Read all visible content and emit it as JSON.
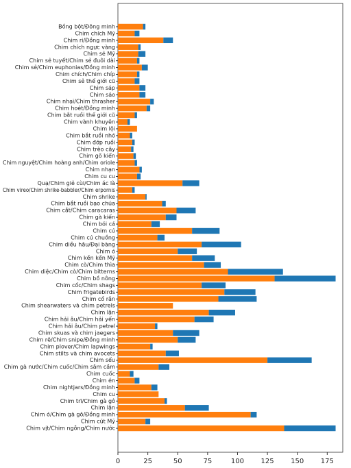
{
  "chart_data": {
    "type": "bar",
    "orientation": "horizontal",
    "categories": [
      "Bồng bột/Đông minh",
      "Chim chích Mỹ",
      "Chim ri/Đồng minh",
      "Chim chích ngực vàng",
      "Chim sẻ Mỹ",
      "Chim sẻ tuyết/Chim sẻ đuôi dài",
      "Chim sẻ/Chim euphonias/Đồng minh",
      "Chim chích/Chim chíp",
      "Chim sẻ thế giới cũ",
      "Chim sáp",
      "Chim sáo",
      "Chim nhại/Chim thrasher",
      "Chim hoét/Đồng minh",
      "Chim bắt ruồi thế giới cũ",
      "Chim vành khuyên",
      "Chim lội",
      "Chim bắt ruồi nhỏ",
      "Chim đớp ruồi",
      "Chim trèo cây",
      "Chim gõ kiến",
      "Chim nguyệt/Chim hoàng anh/Chim oriole",
      "Chim nhạn",
      "Chim cu cu",
      "Quạ/Chim giẻ cùi/Chim ác là",
      "Chim vireo/Chim shrike-babbler/Chim erpornis",
      "Chim shrike",
      "Chim bắt ruồi bạo chúa",
      "Chim cắt/Chim caracaras",
      "Chim gà kiến",
      "Chim bói cá",
      "Chim cú",
      "Chim cú chuồng",
      "Chim diều hâu/Đại bàng",
      "Chim ó",
      "Chim kền kền Mỹ",
      "Chim cò/Chim thìa",
      "Chim diệc/Chim cò/Chim bitterns",
      "Chim bồ nông",
      "Chim cốc/Chim shags",
      "Chim frigatebirds",
      "Chim cổ rắn",
      "Chim shearwaters và chim petrels",
      "Chim lặn",
      "Chim hải âu/Chim hải yến",
      "Chim hải âu/Chim petrel",
      "Chim skuas và chim jaegers",
      "Chim rẽ/Chim snipe/Đồng minh",
      "Chim plover/Chim lapwings",
      "Chim stilts và chim avocets",
      "Chim sếu",
      "Chim gà nước/Chim cuốc/Chim sâm cầm",
      "Chim cuốc",
      "Chim én",
      "Chim nightjars/Đồng minh",
      "Chim cu",
      "Chim trĩ/Chim gà gô",
      "Chim lặn",
      "Chim ó/Chim gà gô/Đồng minh",
      "Chim cút Mỹ",
      "Chim vịt/Chim ngỗng/Chim nước"
    ],
    "series": [
      {
        "color": "#ff7f0e",
        "values": [
          21,
          14,
          38,
          17,
          17,
          16,
          20,
          16,
          14,
          18,
          18,
          27,
          24,
          14,
          8,
          16,
          10,
          12,
          11,
          13,
          14,
          18,
          16,
          54,
          12,
          23,
          37,
          49,
          40,
          28,
          62,
          33,
          70,
          50,
          62,
          72,
          92,
          131,
          70,
          89,
          84,
          46,
          76,
          64,
          31,
          46,
          50,
          27,
          40,
          125,
          34,
          10,
          14,
          28,
          34,
          39,
          56,
          111,
          23,
          139
        ]
      },
      {
        "color": "#1f77b4",
        "values": [
          2,
          4,
          8,
          2,
          6,
          2,
          5,
          2,
          4,
          5,
          5,
          3,
          3,
          2,
          2,
          0,
          2,
          2,
          2,
          2,
          2,
          2,
          3,
          14,
          2,
          1,
          3,
          16,
          9,
          7,
          23,
          6,
          33,
          16,
          19,
          14,
          46,
          51,
          20,
          26,
          32,
          0,
          22,
          16,
          2,
          22,
          15,
          2,
          11,
          37,
          9,
          3,
          4,
          5,
          0,
          2,
          20,
          5,
          4,
          43
        ]
      }
    ],
    "xlim": [
      0,
      188
    ],
    "xticks": [
      0,
      25,
      50,
      75,
      100,
      125,
      150,
      175
    ]
  }
}
